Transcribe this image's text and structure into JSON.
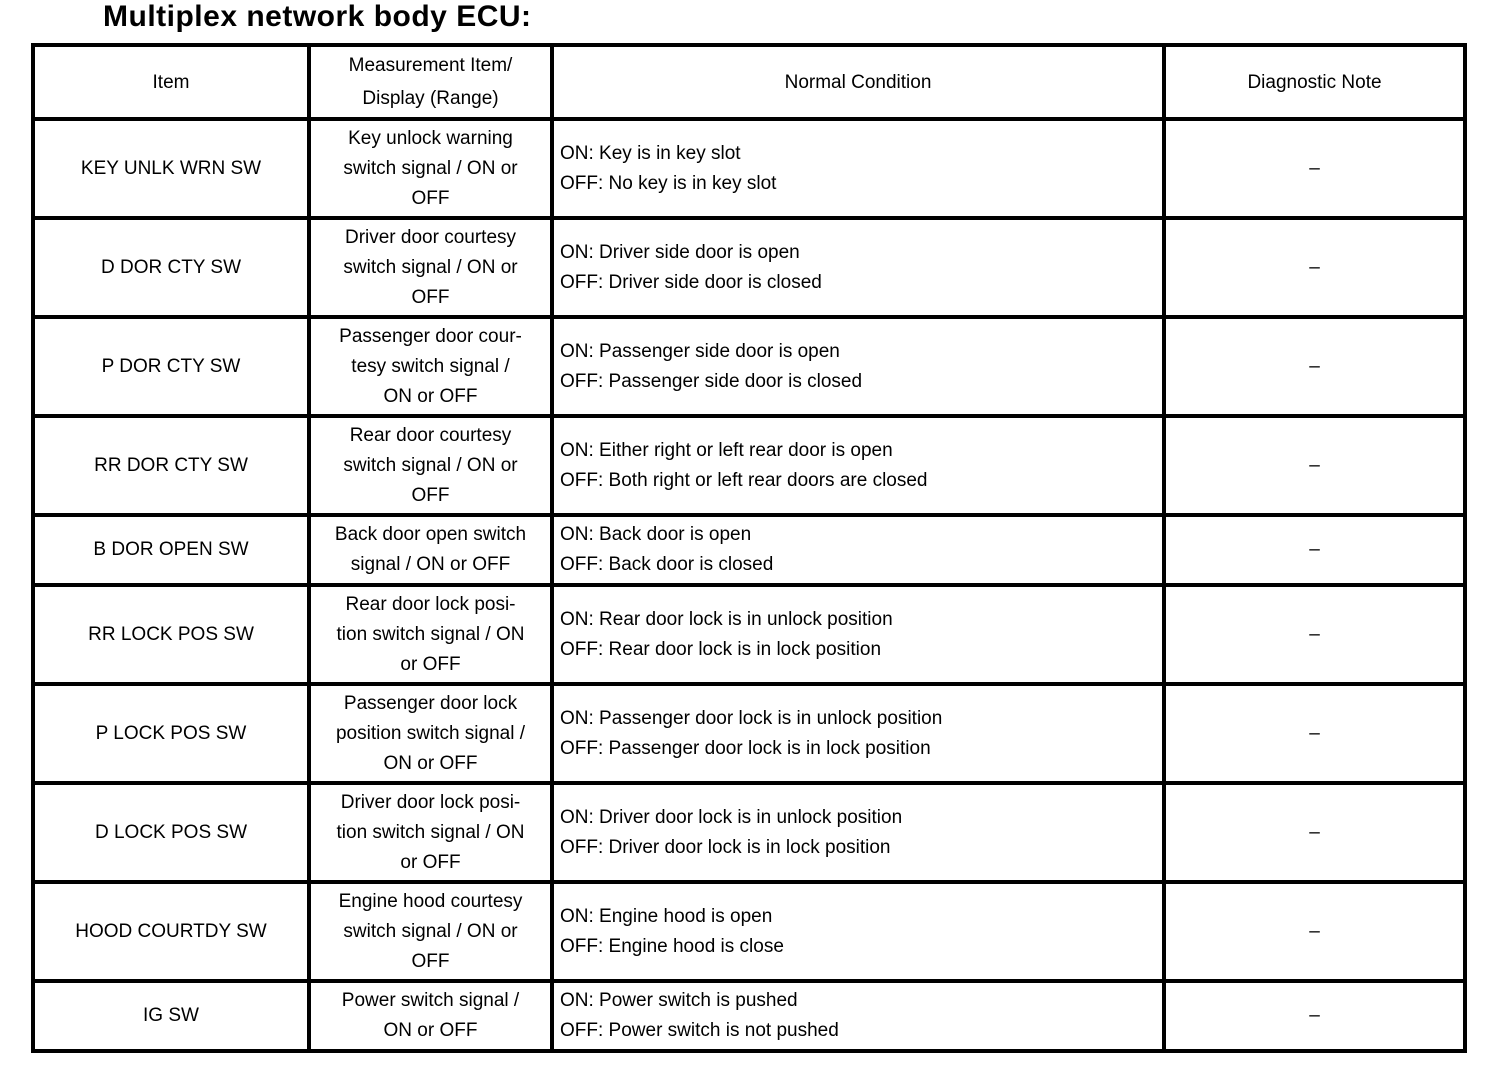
{
  "title": "Multiplex network body ECU:",
  "table": {
    "headers": [
      "Item",
      "Measurement Item/\nDisplay (Range)",
      "Normal Condition",
      "Diagnostic Note"
    ],
    "rows": [
      {
        "item": "KEY UNLK WRN SW",
        "measurement": "Key unlock warning\nswitch signal / ON or\nOFF",
        "normal_condition": "ON: Key is in key slot\nOFF: No key is in key slot",
        "diagnostic_note": "–"
      },
      {
        "item": "D DOR CTY SW",
        "measurement": "Driver door courtesy\nswitch signal / ON or\nOFF",
        "normal_condition": "ON: Driver side door is open\nOFF: Driver side door is closed",
        "diagnostic_note": "–"
      },
      {
        "item": "P DOR CTY SW",
        "measurement": "Passenger door cour-\ntesy switch signal /\nON or OFF",
        "normal_condition": "ON: Passenger side door is open\nOFF: Passenger side door is closed",
        "diagnostic_note": "–"
      },
      {
        "item": "RR DOR CTY SW",
        "measurement": "Rear door courtesy\nswitch signal / ON or\nOFF",
        "normal_condition": "ON: Either right or left rear door is open\nOFF: Both right or left rear doors are closed",
        "diagnostic_note": "–"
      },
      {
        "item": "B DOR OPEN SW",
        "measurement": "Back door open switch\nsignal / ON or OFF",
        "normal_condition": "ON: Back door is open\nOFF: Back door is closed",
        "diagnostic_note": "–"
      },
      {
        "item": "RR LOCK POS SW",
        "measurement": "Rear door lock posi-\ntion switch signal / ON\nor OFF",
        "normal_condition": "ON: Rear door lock is in unlock position\nOFF: Rear door lock is in lock position",
        "diagnostic_note": "–"
      },
      {
        "item": "P LOCK POS SW",
        "measurement": "Passenger door lock\nposition switch signal /\nON or OFF",
        "normal_condition": "ON: Passenger door lock is in unlock position\nOFF: Passenger door lock is in lock position",
        "diagnostic_note": "–"
      },
      {
        "item": "D LOCK POS SW",
        "measurement": "Driver door lock posi-\ntion switch signal / ON\nor OFF",
        "normal_condition": "ON: Driver door lock is in unlock position\nOFF: Driver door lock is in lock position",
        "diagnostic_note": "–"
      },
      {
        "item": "HOOD COURTDY SW",
        "measurement": "Engine hood courtesy\nswitch signal / ON or\nOFF",
        "normal_condition": "ON: Engine hood is open\nOFF: Engine hood is close",
        "diagnostic_note": "–"
      },
      {
        "item": "IG SW",
        "measurement": "Power switch signal /\nON or OFF",
        "normal_condition": "ON: Power switch is pushed\nOFF: Power switch is not pushed",
        "diagnostic_note": "–"
      }
    ]
  }
}
